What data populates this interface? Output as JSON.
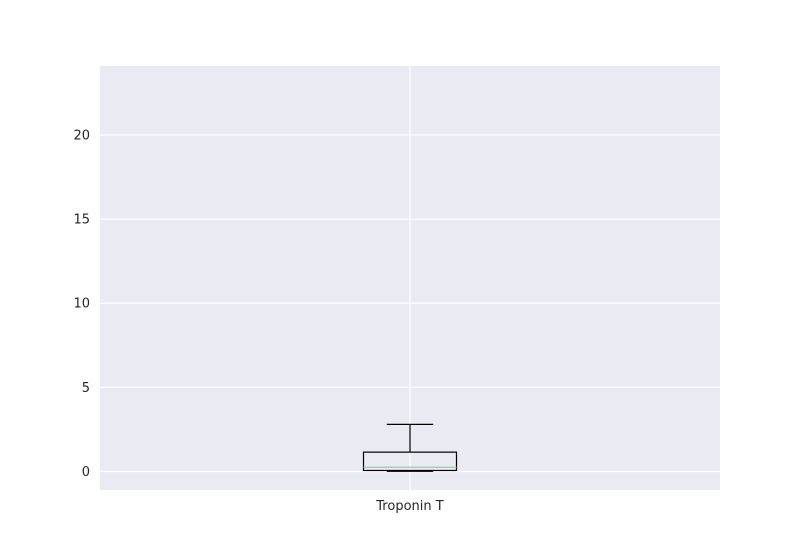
{
  "chart_data": {
    "type": "box",
    "title": "",
    "xlabel": "",
    "ylabel": "",
    "categories": [
      "Troponin T"
    ],
    "boxes": [
      {
        "label": "Troponin T",
        "whisker_low": 0.01,
        "q1": 0.06,
        "median": 0.25,
        "q3": 1.15,
        "whisker_high": 2.8
      }
    ],
    "ylim": [
      -1.1,
      24.1
    ],
    "yticks": [
      0,
      5,
      10,
      15,
      20
    ],
    "ytick_labels": [
      "0",
      "5",
      "10",
      "15",
      "20"
    ],
    "grid": true,
    "legend": "none",
    "colors": {
      "background": "#eaeaf2",
      "grid": "#ffffff",
      "box": "#000000",
      "median": "#8dd3a6",
      "text": "#262626"
    }
  }
}
